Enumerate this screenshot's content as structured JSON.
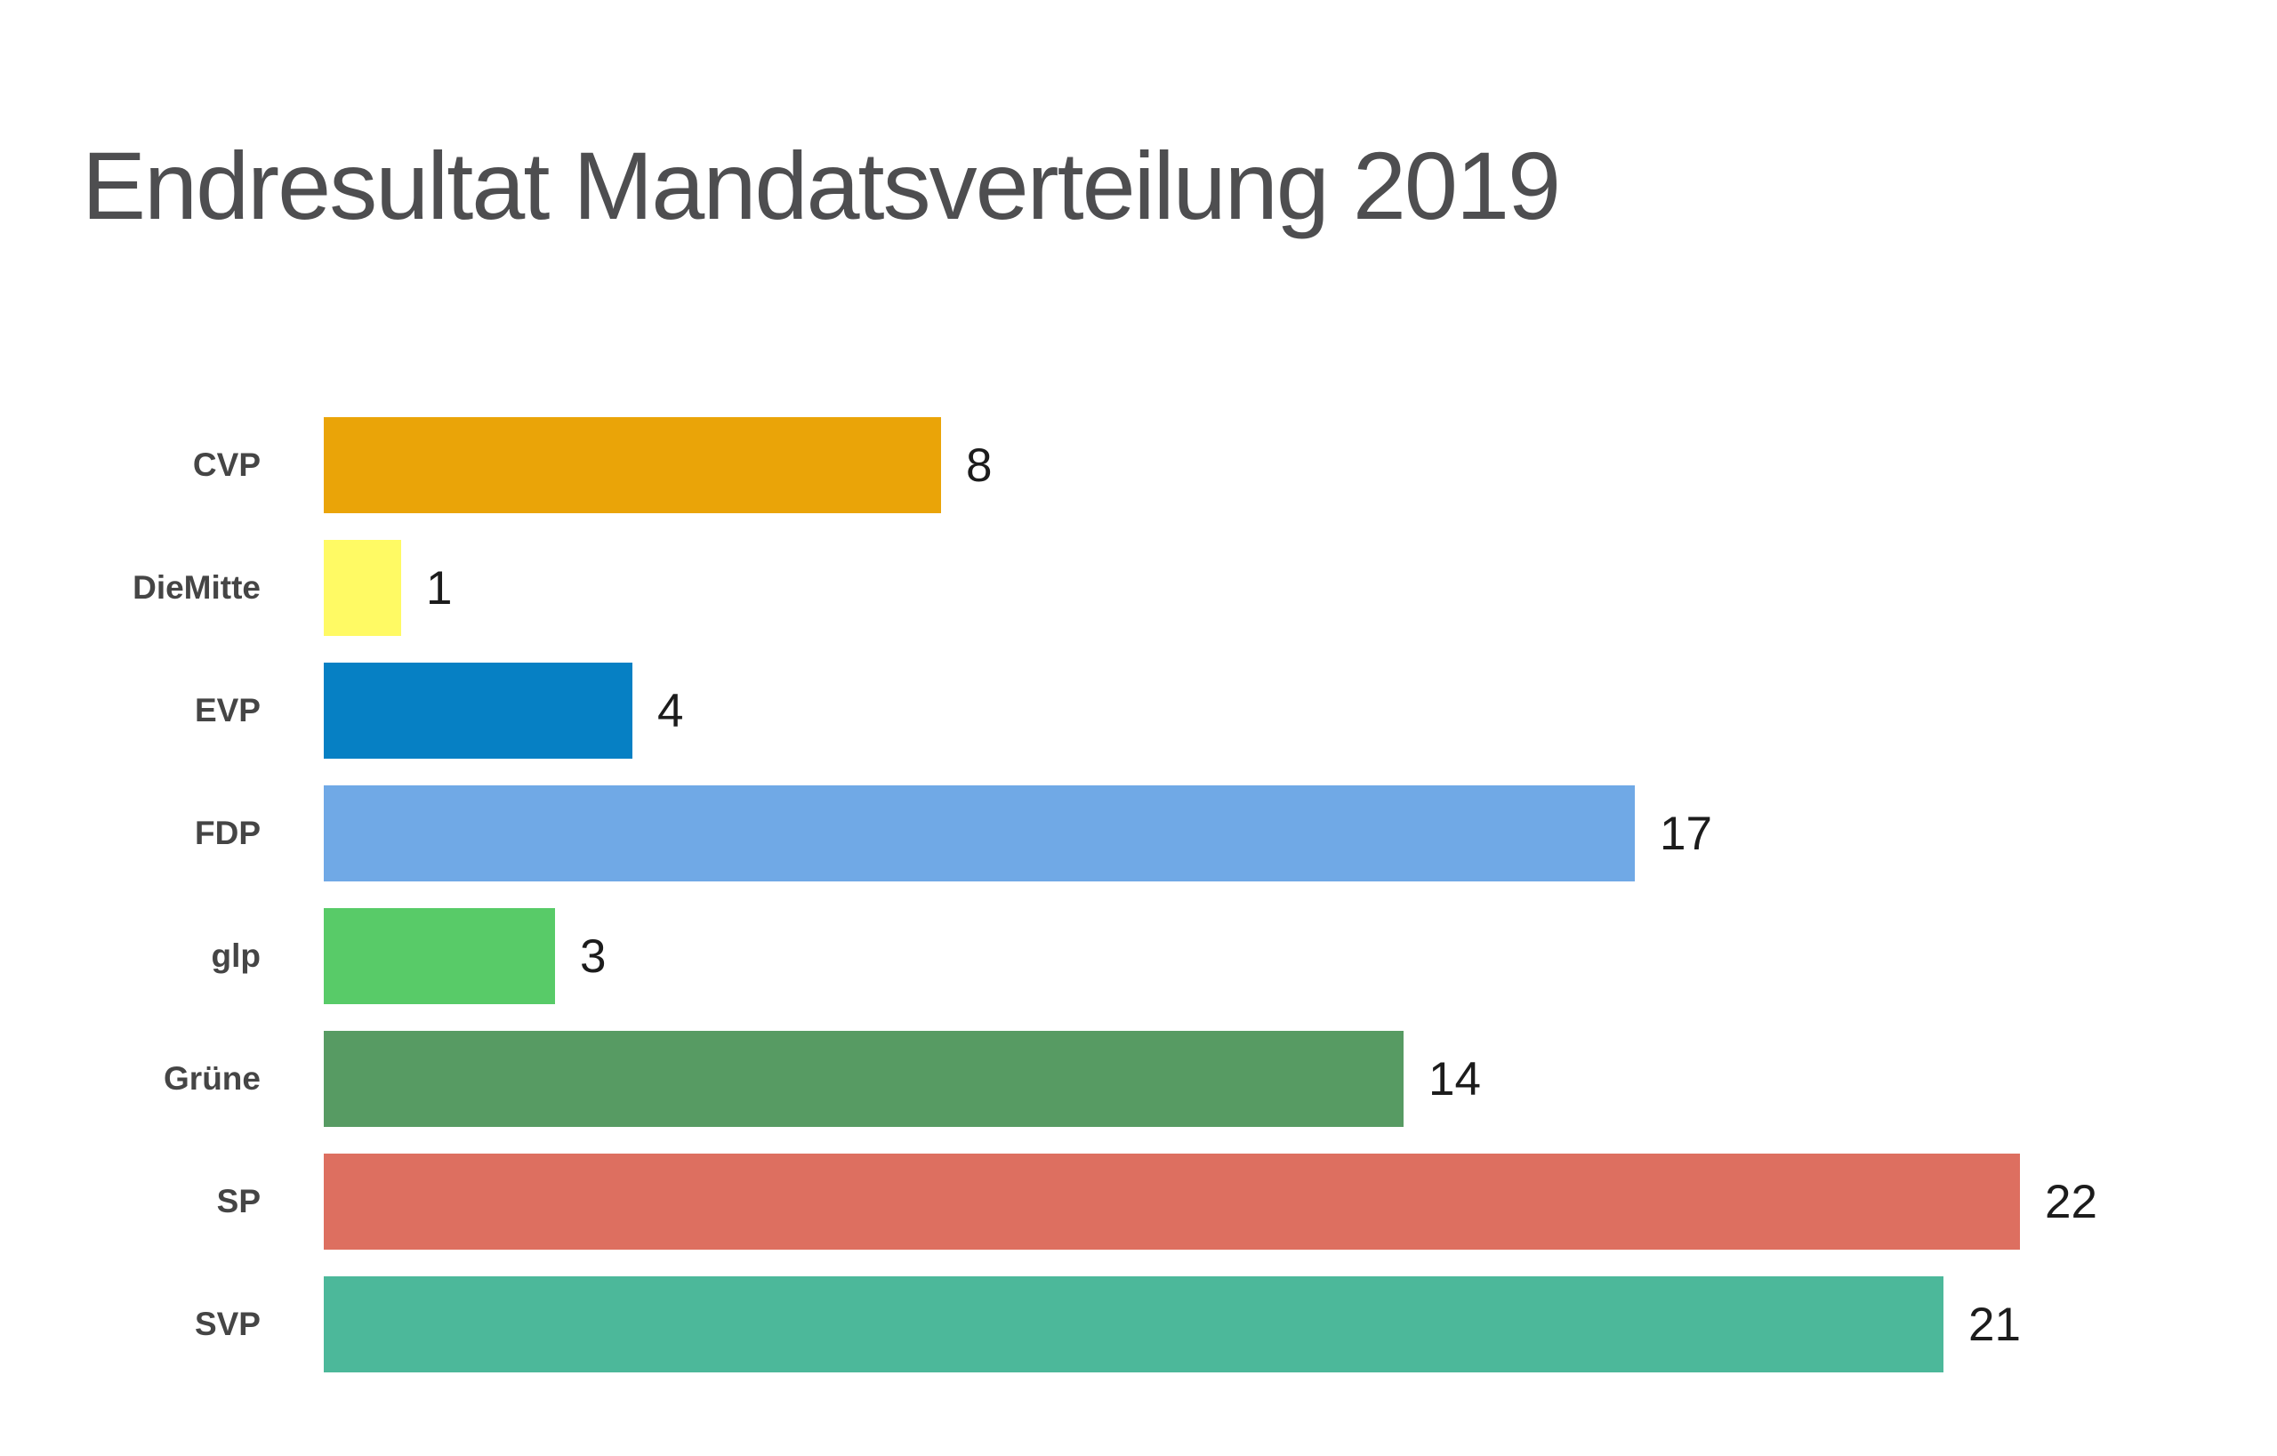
{
  "page": {
    "background": "#ffffff"
  },
  "chart_data": {
    "type": "bar",
    "orientation": "horizontal",
    "title": "Endresultat Mandatsverteilung 2019",
    "title_color": "#4e4e50",
    "categories": [
      "CVP",
      "DieMitte",
      "EVP",
      "FDP",
      "glp",
      "Grüne",
      "SP",
      "SVP"
    ],
    "values": [
      8,
      1,
      4,
      17,
      3,
      14,
      22,
      21
    ],
    "value_labels": [
      "8",
      "1",
      "4",
      "17",
      "3",
      "14",
      "22",
      "21"
    ],
    "colors": [
      "#EAA408",
      "#FFFA64",
      "#0680C4",
      "#70A9E6",
      "#58CB68",
      "#579B63",
      "#DD6F60",
      "#4CB89A"
    ],
    "category_label_color": "#454545",
    "value_label_color": "#1c1c1c",
    "xlim": [
      0,
      25.3
    ],
    "grid": false,
    "legend": false,
    "axis_ticks": false
  }
}
